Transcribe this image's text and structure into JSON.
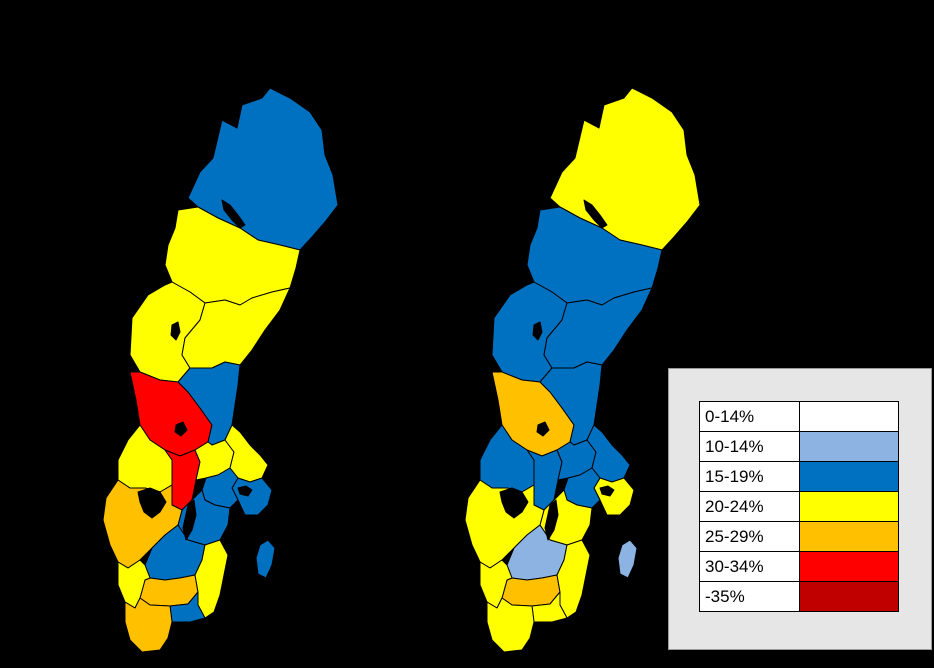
{
  "colors": {
    "c0": "#ffffff",
    "c1": "#8db3e2",
    "c2": "#0070c0",
    "c3": "#ffff00",
    "c4": "#ffc000",
    "c5": "#ff0000",
    "c6": "#c00000",
    "lake": "#000000",
    "border": "#000000"
  },
  "legend": {
    "items": [
      {
        "label": "0-14%",
        "color": "#ffffff"
      },
      {
        "label": "10-14%",
        "color": "#8db3e2"
      },
      {
        "label": "15-19%",
        "color": "#0070c0"
      },
      {
        "label": "20-24%",
        "color": "#ffff00"
      },
      {
        "label": "25-29%",
        "color": "#ffc000"
      },
      {
        "label": "30-34%",
        "color": "#ff0000"
      },
      {
        "label": "-35%",
        "color": "#c00000"
      }
    ]
  },
  "maps": [
    {
      "regions": [
        {
          "name": "norrbotten",
          "class": "15-19%"
        },
        {
          "name": "vasterbotten",
          "class": "20-24%"
        },
        {
          "name": "jamtland",
          "class": "20-24%"
        },
        {
          "name": "vasternorrland",
          "class": "20-24%"
        },
        {
          "name": "dalarna",
          "class": "30-34%"
        },
        {
          "name": "gavleborg",
          "class": "15-19%"
        },
        {
          "name": "varmland",
          "class": "20-24%"
        },
        {
          "name": "orebro",
          "class": "30-34%"
        },
        {
          "name": "vastmanland",
          "class": "20-24%"
        },
        {
          "name": "uppsala",
          "class": "20-24%"
        },
        {
          "name": "stockholm",
          "class": "15-19%"
        },
        {
          "name": "sodermanland",
          "class": "15-19%"
        },
        {
          "name": "ostergotland",
          "class": "15-19%"
        },
        {
          "name": "vastra-gotaland",
          "class": "25-29%"
        },
        {
          "name": "jonkoping",
          "class": "15-19%"
        },
        {
          "name": "kronoberg",
          "class": "25-29%"
        },
        {
          "name": "kalmar",
          "class": "20-24%"
        },
        {
          "name": "halland",
          "class": "20-24%"
        },
        {
          "name": "blekinge",
          "class": "15-19%"
        },
        {
          "name": "skane",
          "class": "25-29%"
        },
        {
          "name": "gotland",
          "class": "15-19%"
        }
      ]
    },
    {
      "regions": [
        {
          "name": "norrbotten",
          "class": "20-24%"
        },
        {
          "name": "vasterbotten",
          "class": "15-19%"
        },
        {
          "name": "jamtland",
          "class": "15-19%"
        },
        {
          "name": "vasternorrland",
          "class": "15-19%"
        },
        {
          "name": "dalarna",
          "class": "25-29%"
        },
        {
          "name": "gavleborg",
          "class": "15-19%"
        },
        {
          "name": "varmland",
          "class": "15-19%"
        },
        {
          "name": "orebro",
          "class": "15-19%"
        },
        {
          "name": "vastmanland",
          "class": "15-19%"
        },
        {
          "name": "uppsala",
          "class": "15-19%"
        },
        {
          "name": "stockholm",
          "class": "20-24%"
        },
        {
          "name": "sodermanland",
          "class": "15-19%"
        },
        {
          "name": "ostergotland",
          "class": "20-24%"
        },
        {
          "name": "vastra-gotaland",
          "class": "20-24%"
        },
        {
          "name": "jonkoping",
          "class": "10-14%"
        },
        {
          "name": "kronoberg",
          "class": "25-29%"
        },
        {
          "name": "kalmar",
          "class": "20-24%"
        },
        {
          "name": "halland",
          "class": "20-24%"
        },
        {
          "name": "blekinge",
          "class": "20-24%"
        },
        {
          "name": "skane",
          "class": "20-24%"
        },
        {
          "name": "gotland",
          "class": "10-14%"
        }
      ]
    }
  ]
}
